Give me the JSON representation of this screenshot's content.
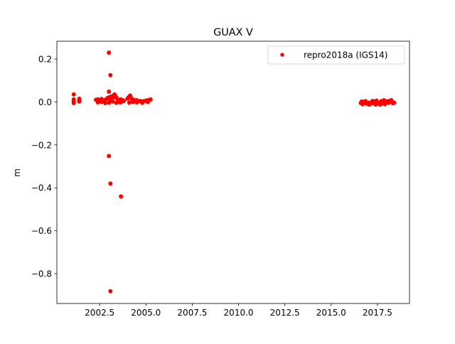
{
  "chart_data": {
    "type": "scatter",
    "title": "GUAX V",
    "xlabel": "",
    "ylabel": "m",
    "xlim": [
      2000.19,
      2019.23
    ],
    "ylim": [
      -0.939,
      0.283
    ],
    "grid": false,
    "legend_position": "top-right",
    "x_ticks": [
      2002.5,
      2005.0,
      2007.5,
      2010.0,
      2012.5,
      2015.0,
      2017.5
    ],
    "x_tick_labels": [
      "2002.5",
      "2005.0",
      "2007.5",
      "2010.0",
      "2012.5",
      "2015.0",
      "2017.5"
    ],
    "y_ticks": [
      0.2,
      0.0,
      -0.2,
      -0.4,
      -0.6,
      -0.8
    ],
    "y_tick_labels": [
      "0.2",
      "0.0",
      "−0.2",
      "−0.4",
      "−0.6",
      "−0.8"
    ],
    "series": [
      {
        "name": "repro2018a (IGS14)",
        "color": "#ff0000",
        "marker": "circle",
        "x": [
          2001.1,
          2001.1,
          2001.1,
          2001.1,
          2001.4,
          2001.4,
          2001.4,
          2002.3,
          2002.4,
          2002.5,
          2002.6,
          2002.7,
          2002.8,
          2002.9,
          2002.95,
          2003.0,
          2003.05,
          2003.1,
          2003.15,
          2003.2,
          2003.25,
          2003.3,
          2003.35,
          2003.4,
          2003.45,
          2003.5,
          2003.55,
          2003.6,
          2003.65,
          2003.7,
          2003.75,
          2003.8,
          2004.0,
          2004.05,
          2004.1,
          2004.15,
          2004.2,
          2004.25,
          2004.3,
          2004.35,
          2004.4,
          2004.5,
          2004.6,
          2004.7,
          2004.8,
          2004.9,
          2005.0,
          2005.1,
          2005.2,
          2005.25,
          2002.4,
          2002.6,
          2002.8,
          2003.0,
          2003.2,
          2003.4,
          2003.6,
          2004.1,
          2004.3,
          2004.5,
          2004.8,
          2005.1,
          2003.0,
          2003.08,
          2003.0,
          2003.0,
          2003.08,
          2003.65,
          2003.08,
          2016.6,
          2016.7,
          2016.8,
          2016.9,
          2017.0,
          2017.1,
          2017.2,
          2017.3,
          2017.4,
          2017.5,
          2017.6,
          2017.7,
          2017.8,
          2017.9,
          2018.0,
          2018.1,
          2018.2,
          2018.3,
          2018.4,
          2016.65,
          2016.85,
          2017.05,
          2017.25,
          2017.45,
          2017.65,
          2017.85,
          2018.05,
          2018.25,
          2018.35
        ],
        "y": [
          0.035,
          0.012,
          0.003,
          -0.005,
          0.015,
          0.008,
          0.002,
          0.01,
          0.012,
          0.008,
          0.014,
          0.005,
          0.01,
          0.015,
          0.02,
          0.012,
          0.018,
          0.025,
          0.01,
          0.02,
          0.03,
          0.035,
          0.028,
          0.02,
          0.015,
          0.01,
          0.008,
          0.005,
          0.012,
          0.002,
          0.008,
          0.005,
          0.015,
          0.02,
          0.025,
          0.03,
          0.018,
          0.012,
          0.008,
          0.01,
          0.005,
          0.008,
          0.003,
          0.005,
          0.002,
          0.004,
          0.006,
          0.008,
          0.01,
          0.012,
          -0.002,
          0.0,
          -0.005,
          -0.003,
          0.002,
          -0.004,
          -0.002,
          -0.003,
          0.0,
          -0.002,
          -0.004,
          0.0,
          0.23,
          0.125,
          0.048,
          -0.252,
          -0.38,
          -0.44,
          -0.882,
          -0.005,
          -0.01,
          0.0,
          -0.008,
          -0.003,
          -0.01,
          0.002,
          -0.006,
          -0.012,
          -0.002,
          -0.008,
          0.003,
          -0.005,
          -0.01,
          0.0,
          -0.004,
          0.006,
          -0.002,
          -0.003,
          0.002,
          0.004,
          -0.012,
          0.005,
          0.006,
          -0.012,
          0.008,
          0.004,
          0.008,
          -0.006
        ]
      }
    ]
  }
}
